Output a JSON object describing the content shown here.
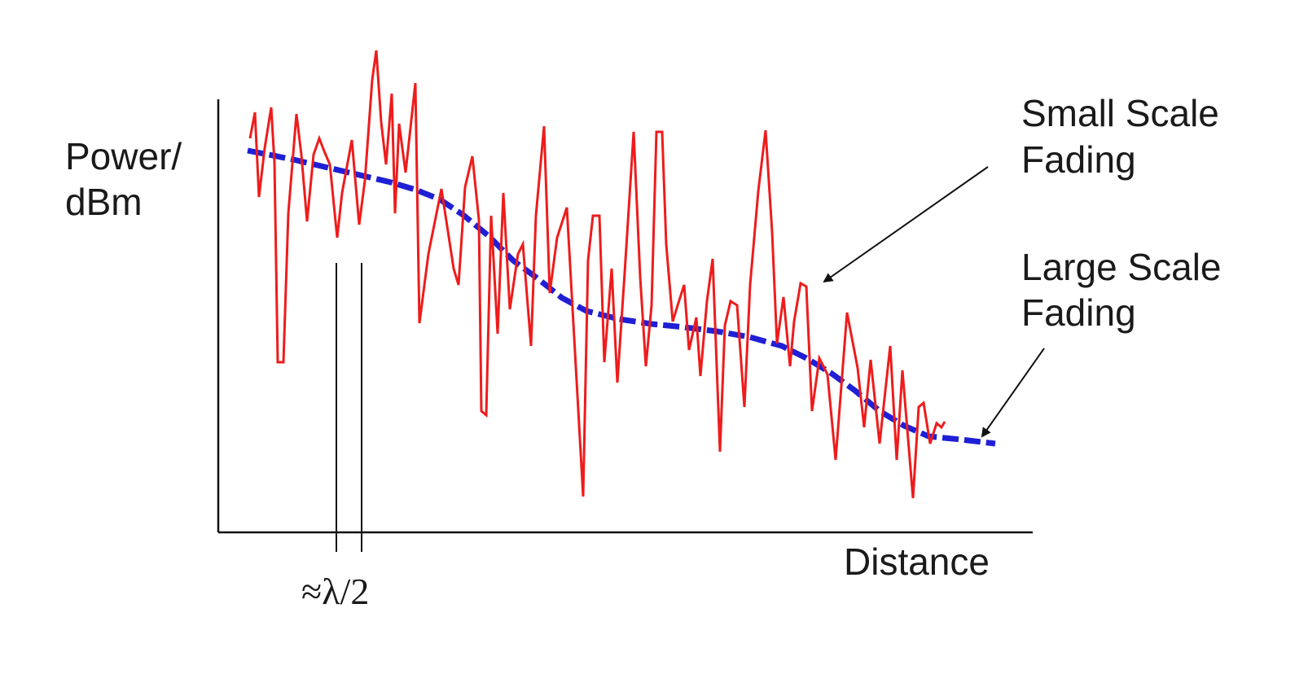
{
  "diagram": {
    "y_axis_label_line1": "Power/",
    "y_axis_label_line2": "dBm",
    "x_axis_label": "Distance",
    "wavelength_marker": "≈λ/2",
    "annotations": {
      "small_scale_line1": "Small Scale",
      "small_scale_line2": "Fading",
      "large_scale_line1": "Large Scale",
      "large_scale_line2": "Fading"
    },
    "colors": {
      "small_scale_curve": "#ee1c1c",
      "large_scale_curve": "#1f1fd6",
      "axes": "#111111"
    }
  }
}
